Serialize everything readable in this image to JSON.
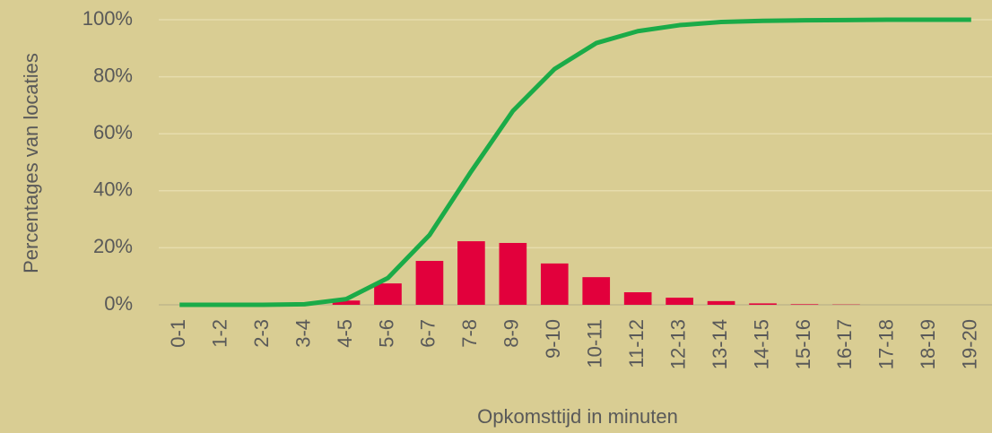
{
  "chart_data": {
    "type": "combo",
    "categories": [
      "0-1",
      "1-2",
      "2-3",
      "3-4",
      "4-5",
      "5-6",
      "6-7",
      "7-8",
      "8-9",
      "9-10",
      "10-11",
      "11-12",
      "12-13",
      "13-14",
      "14-15",
      "15-16",
      "16-17",
      "17-18",
      "18-19",
      "19-20"
    ],
    "series": [
      {
        "type": "bar",
        "color": "#e2003c",
        "values": [
          0,
          0,
          0,
          0,
          1.5,
          7.5,
          15.4,
          22.3,
          21.7,
          14.5,
          9.7,
          4.4,
          2.5,
          1.3,
          0.5,
          0.2,
          0.1,
          0,
          0,
          0
        ]
      },
      {
        "type": "line",
        "color": "#1bab48",
        "values": [
          0,
          0,
          0,
          0.2,
          2,
          9.4,
          24.5,
          46.8,
          68,
          82.7,
          91.8,
          96,
          98.1,
          99.2,
          99.6,
          99.8,
          99.9,
          100,
          100,
          100
        ]
      }
    ],
    "ylim": [
      0,
      100
    ],
    "yticks": [
      {
        "value": 0,
        "label": "0%"
      },
      {
        "value": 20,
        "label": "20%"
      },
      {
        "value": 40,
        "label": "40%"
      },
      {
        "value": 60,
        "label": "60%"
      },
      {
        "value": 80,
        "label": "80%"
      },
      {
        "value": 100,
        "label": "100%"
      }
    ],
    "ylabel": "Percentages van locaties",
    "xlabel": "Opkomsttijd in minuten",
    "grid": true
  }
}
